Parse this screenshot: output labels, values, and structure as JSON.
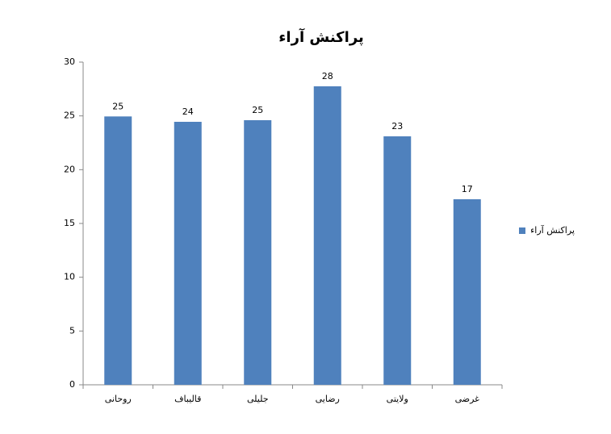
{
  "chart_data": {
    "type": "bar",
    "title": "پراکنش آراء",
    "categories": [
      "روحانی",
      "قالیباف",
      "جلیلی",
      "رضایی",
      "ولایتی",
      "غرضی"
    ],
    "series": [
      {
        "name": "پراکنش آراء",
        "color": "#4f81bd",
        "values": [
          24.95,
          24.45,
          24.6,
          27.75,
          23.1,
          17.25
        ],
        "value_labels": [
          "25",
          "24",
          "25",
          "28",
          "23",
          "17"
        ]
      }
    ],
    "ylim": [
      0,
      30
    ],
    "yticks": [
      0,
      5,
      10,
      15,
      20,
      25,
      30
    ],
    "grid": false,
    "legend": "right"
  }
}
